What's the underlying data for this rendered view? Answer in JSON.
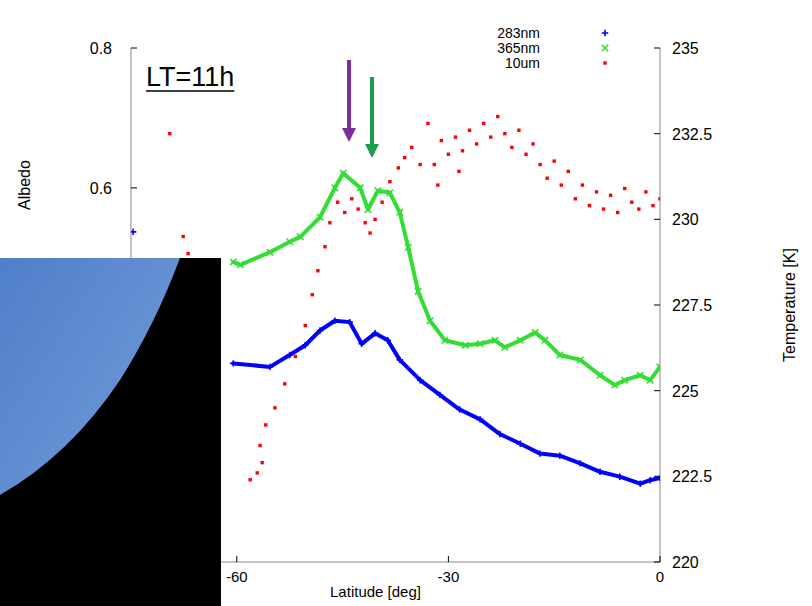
{
  "chart_data": {
    "type": "scatter",
    "annotations": [
      "LT=11h"
    ],
    "x_label": "Latitude [deg]",
    "y_label": "Albedo",
    "y2_label": "Temperature [K]",
    "xlim": [
      -75,
      0
    ],
    "xticks": [
      -60,
      -30,
      0
    ],
    "ylim": [
      0.065,
      0.8
    ],
    "yticks": [
      0.6,
      0.8
    ],
    "y2lim": [
      220,
      235
    ],
    "y2ticks": [
      220,
      222.5,
      225,
      227.5,
      230,
      232.5,
      235
    ],
    "legend": "upper right",
    "series": [
      {
        "name": "283nm",
        "color": "#0000ff",
        "marker": "plus",
        "line_style": "solid",
        "x": [
          -74.7,
          -60.5,
          -60.5,
          -55.3,
          -52.5,
          -50.3,
          -48.2,
          -46.1,
          -44.0,
          -42.3,
          -40.4,
          -38.6,
          -36.9,
          -34.0,
          -31.2,
          -28.4,
          -25.5,
          -22.7,
          -19.8,
          -17.0,
          -14.2,
          -11.3,
          -8.5,
          -5.7,
          -2.8,
          -1.4,
          0
        ],
        "values": [
          0.537,
          null,
          0.349,
          0.344,
          0.361,
          0.375,
          0.396,
          0.41,
          0.408,
          0.377,
          0.392,
          0.382,
          0.354,
          0.325,
          0.304,
          0.283,
          0.269,
          0.248,
          0.234,
          0.22,
          0.217,
          0.206,
          0.194,
          0.187,
          0.177,
          0.182,
          0.185
        ]
      },
      {
        "name": "365nm",
        "color": "#33dd33",
        "marker": "cross",
        "line_style": "solid",
        "x": [
          -60.5,
          -59.5,
          -55.3,
          -52.5,
          -51.0,
          -48.2,
          -46.1,
          -44.9,
          -42.5,
          -41.4,
          -40.0,
          -38.3,
          -36.9,
          -35.7,
          -34.3,
          -32.6,
          -30.5,
          -27.6,
          -25.5,
          -23.4,
          -22.0,
          -19.8,
          -17.7,
          -16.3,
          -14.2,
          -11.3,
          -8.5,
          -6.4,
          -5.0,
          -2.8,
          -1.4,
          0
        ],
        "values": [
          0.494,
          0.49,
          0.508,
          0.523,
          0.53,
          0.558,
          0.6,
          0.621,
          0.6,
          0.569,
          0.596,
          0.593,
          0.565,
          0.515,
          0.452,
          0.41,
          0.382,
          0.375,
          0.377,
          0.382,
          0.372,
          0.382,
          0.393,
          0.382,
          0.361,
          0.354,
          0.332,
          0.318,
          0.325,
          0.332,
          0.325,
          0.344
        ]
      },
      {
        "name": "10um",
        "color": "#ff0000",
        "marker": "square",
        "line_style": "none",
        "axis": "y2",
        "x": [
          -69.5,
          -67.6,
          -66.9,
          -58.1,
          -57.1,
          -56.4,
          -56.7,
          -55.9,
          -54.6,
          -53.2,
          -51.7,
          -50.3,
          -49.3,
          -48.5,
          -47.5,
          -46.8,
          -45.7,
          -44.7,
          -43.7,
          -42.8,
          -41.8,
          -41.1,
          -40.4,
          -39.4,
          -38.3,
          -37.1,
          -36.2,
          -35.2,
          -34.0,
          -32.9,
          -32.0,
          -31.5,
          -31.0,
          -30.0,
          -29.0,
          -28.5,
          -28.0,
          -27.0,
          -26.0,
          -25.0,
          -24.0,
          -23.0,
          -22.0,
          -21.0,
          -20.0,
          -19.0,
          -18.0,
          -17.0,
          -16.0,
          -15.0,
          -14.0,
          -13.0,
          -12.0,
          -11.0,
          -10.0,
          -9.0,
          -8.0,
          -7.0,
          -6.0,
          -5.0,
          -4.0,
          -3.0,
          -2.0,
          -1.0,
          0.0
        ],
        "values": [
          232.5,
          229.5,
          229.0,
          222.4,
          222.6,
          222.9,
          223.4,
          224.0,
          224.5,
          225.2,
          226.0,
          226.9,
          227.8,
          228.5,
          229.2,
          229.9,
          230.5,
          230.2,
          230.6,
          230.3,
          229.9,
          229.6,
          230.0,
          230.5,
          231.1,
          231.5,
          231.8,
          232.1,
          231.6,
          232.8,
          231.6,
          231.0,
          232.3,
          231.9,
          232.4,
          231.4,
          232.0,
          232.6,
          232.2,
          232.8,
          232.4,
          233.0,
          232.5,
          232.1,
          232.6,
          231.9,
          232.2,
          231.6,
          231.2,
          231.7,
          231.0,
          231.4,
          230.6,
          231.0,
          230.4,
          230.8,
          230.3,
          230.7,
          230.2,
          230.9,
          230.5,
          230.3,
          230.8,
          230.4,
          230.6
        ]
      }
    ]
  }
}
